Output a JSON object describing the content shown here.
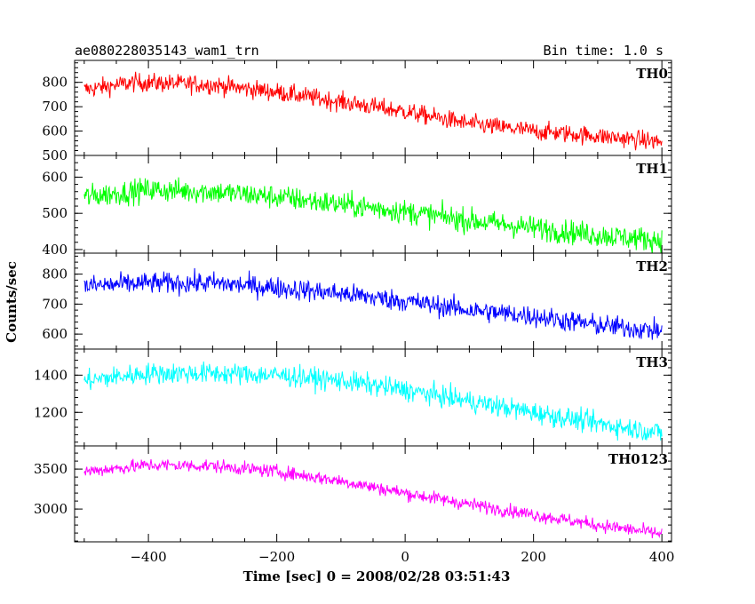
{
  "header": {
    "title": "ae080228035143_wam1_trn",
    "bin_time": "Bin time: 1.0 s"
  },
  "chart_data": {
    "type": "line",
    "xlabel": "Time [sec] 0 = 2008/02/28 03:51:43",
    "ylabel": "Counts/sec",
    "xlim": [
      -515,
      415
    ],
    "x_ticks": [
      -400,
      -200,
      0,
      200,
      400
    ],
    "x": {
      "start": -500,
      "end": 400,
      "step": 1
    },
    "panels": [
      {
        "name": "TH0",
        "color": "#ff0000",
        "ylim": [
          500,
          890
        ],
        "y_ticks": [
          500,
          600,
          700,
          800
        ],
        "trend": [
          [
            -500,
            770
          ],
          [
            -420,
            800
          ],
          [
            -300,
            790
          ],
          [
            -200,
            760
          ],
          [
            -100,
            720
          ],
          [
            0,
            680
          ],
          [
            100,
            630
          ],
          [
            200,
            600
          ],
          [
            300,
            580
          ],
          [
            400,
            555
          ]
        ],
        "noise": 32
      },
      {
        "name": "TH1",
        "color": "#00ff00",
        "ylim": [
          390,
          660
        ],
        "y_ticks": [
          400,
          500,
          600
        ],
        "trend": [
          [
            -500,
            545
          ],
          [
            -400,
            565
          ],
          [
            -300,
            560
          ],
          [
            -200,
            545
          ],
          [
            -100,
            525
          ],
          [
            0,
            505
          ],
          [
            100,
            480
          ],
          [
            200,
            460
          ],
          [
            300,
            440
          ],
          [
            400,
            425
          ]
        ],
        "noise": 28
      },
      {
        "name": "TH2",
        "color": "#0000ff",
        "ylim": [
          550,
          870
        ],
        "y_ticks": [
          600,
          700,
          800
        ],
        "trend": [
          [
            -500,
            760
          ],
          [
            -400,
            770
          ],
          [
            -300,
            770
          ],
          [
            -200,
            755
          ],
          [
            -100,
            735
          ],
          [
            0,
            710
          ],
          [
            100,
            680
          ],
          [
            200,
            660
          ],
          [
            300,
            630
          ],
          [
            400,
            610
          ]
        ],
        "noise": 30
      },
      {
        "name": "TH3",
        "color": "#00ffff",
        "ylim": [
          1020,
          1540
        ],
        "y_ticks": [
          1200,
          1400
        ],
        "trend": [
          [
            -500,
            1370
          ],
          [
            -400,
            1410
          ],
          [
            -300,
            1410
          ],
          [
            -200,
            1400
          ],
          [
            -100,
            1370
          ],
          [
            0,
            1320
          ],
          [
            100,
            1260
          ],
          [
            200,
            1200
          ],
          [
            300,
            1140
          ],
          [
            400,
            1090
          ]
        ],
        "noise": 48
      },
      {
        "name": "TH0123",
        "color": "#ff00ff",
        "ylim": [
          2590,
          3790
        ],
        "y_ticks": [
          3000,
          3500
        ],
        "trend": [
          [
            -500,
            3470
          ],
          [
            -400,
            3550
          ],
          [
            -300,
            3540
          ],
          [
            -200,
            3470
          ],
          [
            -100,
            3350
          ],
          [
            0,
            3200
          ],
          [
            100,
            3060
          ],
          [
            200,
            2930
          ],
          [
            300,
            2800
          ],
          [
            400,
            2690
          ]
        ],
        "noise": 70
      }
    ]
  }
}
